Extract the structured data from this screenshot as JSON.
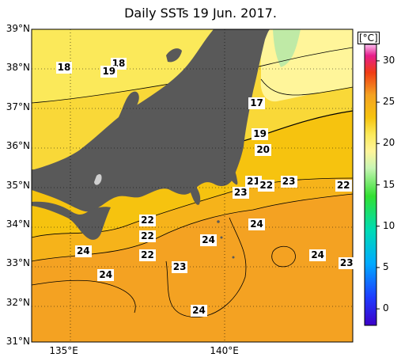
{
  "title": "Daily SSTs 19 Jun. 2017.",
  "lat_labels": [
    {
      "text": "39°N",
      "lat": 39
    },
    {
      "text": "38°N",
      "lat": 38
    },
    {
      "text": "37°N",
      "lat": 37
    },
    {
      "text": "36°N",
      "lat": 36
    },
    {
      "text": "35°N",
      "lat": 35
    },
    {
      "text": "34°N",
      "lat": 34
    },
    {
      "text": "33°N",
      "lat": 33
    },
    {
      "text": "32°N",
      "lat": 32
    },
    {
      "text": "31°N",
      "lat": 31
    }
  ],
  "lon_labels": [
    {
      "text": "135°E",
      "lon": 135
    },
    {
      "text": "140°E",
      "lon": 140
    }
  ],
  "map_extent": {
    "lon_min": 134,
    "lon_max": 144,
    "lat_min": 31,
    "lat_max": 39
  },
  "contour_labels": [
    {
      "text": "18",
      "lon": 135.0,
      "lat": 38.0
    },
    {
      "text": "18",
      "lon": 136.7,
      "lat": 38.1
    },
    {
      "text": "19",
      "lon": 136.4,
      "lat": 37.9
    },
    {
      "text": "17",
      "lon": 141.0,
      "lat": 37.1
    },
    {
      "text": "19",
      "lon": 141.1,
      "lat": 36.3
    },
    {
      "text": "20",
      "lon": 141.2,
      "lat": 35.9
    },
    {
      "text": "21",
      "lon": 140.9,
      "lat": 35.1
    },
    {
      "text": "22",
      "lon": 141.3,
      "lat": 35.0
    },
    {
      "text": "23",
      "lon": 142.0,
      "lat": 35.1
    },
    {
      "text": "22",
      "lon": 143.7,
      "lat": 35.0
    },
    {
      "text": "23",
      "lon": 140.5,
      "lat": 34.8
    },
    {
      "text": "22",
      "lon": 137.6,
      "lat": 34.1
    },
    {
      "text": "24",
      "lon": 141.0,
      "lat": 34.0
    },
    {
      "text": "22",
      "lon": 137.6,
      "lat": 33.7
    },
    {
      "text": "24",
      "lon": 139.5,
      "lat": 33.6
    },
    {
      "text": "24",
      "lon": 135.6,
      "lat": 33.3
    },
    {
      "text": "22",
      "lon": 137.6,
      "lat": 33.2
    },
    {
      "text": "24",
      "lon": 142.9,
      "lat": 33.2
    },
    {
      "text": "23",
      "lon": 138.6,
      "lat": 32.9
    },
    {
      "text": "23",
      "lon": 143.8,
      "lat": 33.0
    },
    {
      "text": "24",
      "lon": 136.3,
      "lat": 32.7
    },
    {
      "text": "24",
      "lon": 139.2,
      "lat": 31.8
    }
  ],
  "colorbar": {
    "unit": "[°C]",
    "ticks": [
      30,
      25,
      20,
      15,
      10,
      5,
      0
    ],
    "min": -2,
    "max": 32,
    "tick_labels": [
      "30",
      "25",
      "20",
      "15",
      "10",
      "5",
      "0"
    ]
  },
  "colors": {
    "land": "#595959",
    "sea_warm": "#f4a222",
    "sea_mid": "#f6c30f",
    "sea_cool": "#fbe95a",
    "sea_cold": "#fff59a",
    "sea_coldest": "#bfeaa6"
  }
}
